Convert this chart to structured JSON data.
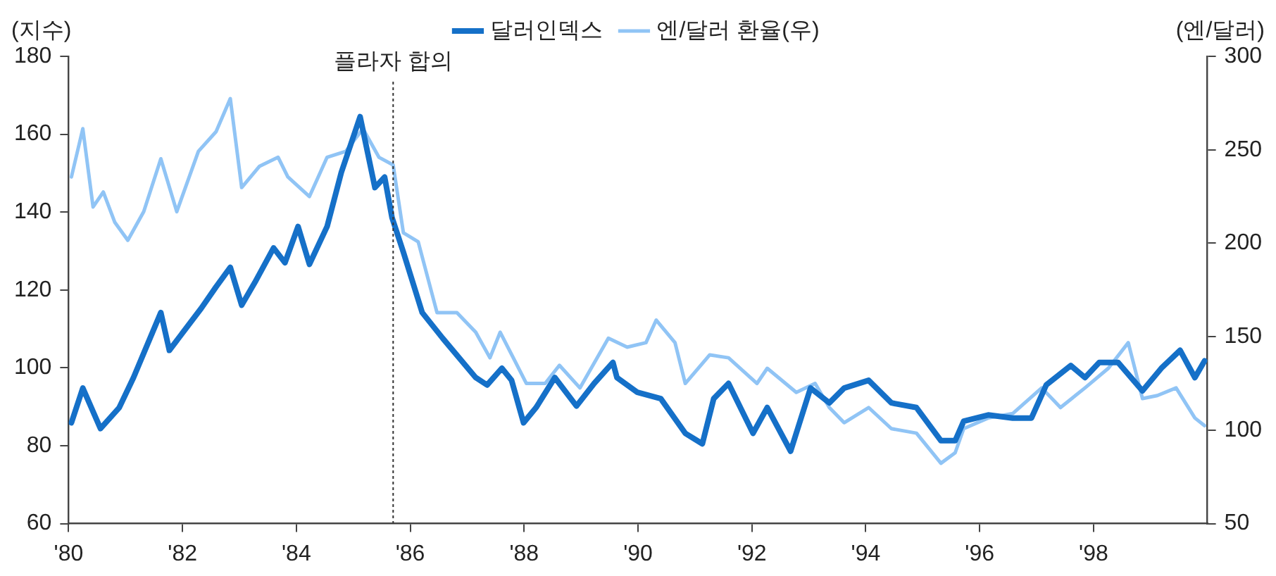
{
  "chart_data": {
    "type": "line",
    "ylabel": "(지수)",
    "y2label": "(엔/달러)",
    "xlim": [
      1980,
      2000
    ],
    "xticks": [
      {
        "value": 1980,
        "label": "'80"
      },
      {
        "value": 1982,
        "label": "'82"
      },
      {
        "value": 1984,
        "label": "'84"
      },
      {
        "value": 1986,
        "label": "'86"
      },
      {
        "value": 1988,
        "label": "'88"
      },
      {
        "value": 1990,
        "label": "'90"
      },
      {
        "value": 1992,
        "label": "'92"
      },
      {
        "value": 1994,
        "label": "'94"
      },
      {
        "value": 1996,
        "label": "'96"
      },
      {
        "value": 1998,
        "label": "'98"
      }
    ],
    "ylim": [
      60,
      180
    ],
    "yticks": [
      60,
      80,
      100,
      120,
      140,
      160,
      180
    ],
    "y2lim": [
      50,
      300
    ],
    "y2ticks": [
      50,
      100,
      150,
      200,
      250,
      300
    ],
    "grid": false,
    "legend": "top right",
    "marker": "none",
    "line_style": "solid",
    "ref_lines": [
      {
        "axis": "x",
        "value": 1985.7,
        "label": "플라자 합의",
        "color": "#333333",
        "line_style": "dotted"
      }
    ],
    "series": [
      {
        "name": "달러인덱스",
        "color": "#1570c8",
        "x": [
          1980.05,
          1980.25,
          1980.56,
          1980.89,
          1981.14,
          1981.62,
          1981.77,
          1982.33,
          1982.59,
          1982.84,
          1983.04,
          1983.27,
          1983.6,
          1983.8,
          1984.03,
          1984.23,
          1984.54,
          1984.79,
          1985.12,
          1985.38,
          1985.55,
          1985.68,
          1985.88,
          1986.21,
          1986.57,
          1987.15,
          1987.35,
          1987.61,
          1987.78,
          1987.99,
          1988.21,
          1988.54,
          1988.92,
          1989.23,
          1989.56,
          1989.63,
          1989.99,
          1990.4,
          1990.83,
          1991.13,
          1991.33,
          1991.59,
          1992.02,
          1992.27,
          1992.68,
          1993.03,
          1993.36,
          1993.62,
          1994.05,
          1994.45,
          1994.89,
          1995.32,
          1995.57,
          1995.72,
          1996.15,
          1996.58,
          1996.91,
          1997.17,
          1997.6,
          1997.85,
          1998.1,
          1998.43,
          1998.86,
          1999.19,
          1999.52,
          1999.78,
          1999.95
        ],
        "values": [
          85.9,
          94.8,
          84.4,
          89.8,
          97.5,
          114.2,
          104.5,
          115.3,
          120.8,
          125.8,
          116.1,
          121.9,
          130.8,
          127,
          136.3,
          126.6,
          136.3,
          150.2,
          164.5,
          146.3,
          149,
          138.6,
          129.7,
          114.2,
          107.6,
          97.5,
          95.6,
          99.9,
          96.8,
          85.9,
          89.8,
          97.5,
          90.2,
          96,
          101.4,
          97.5,
          93.7,
          92.1,
          83.2,
          80.5,
          92.1,
          96,
          83.2,
          89.8,
          78.6,
          94.8,
          91,
          94.8,
          96.8,
          91,
          89.8,
          81.3,
          81.3,
          86.3,
          87.9,
          87.1,
          87.1,
          95.6,
          100.6,
          97.5,
          101.4,
          101.4,
          94.1,
          99.9,
          104.5,
          97.5,
          101.8
        ]
      },
      {
        "name": "엔/달러 환율(우)",
        "color": "#90c4f5",
        "axis": "y2",
        "x": [
          1980.05,
          1980.25,
          1980.43,
          1980.61,
          1980.81,
          1981.04,
          1981.32,
          1981.62,
          1981.9,
          1982.28,
          1982.59,
          1982.84,
          1983.04,
          1983.35,
          1983.68,
          1983.85,
          1984.23,
          1984.54,
          1984.87,
          1985.17,
          1985.45,
          1985.7,
          1985.88,
          1986.14,
          1986.47,
          1986.82,
          1987.15,
          1987.4,
          1987.58,
          1988.04,
          1988.37,
          1988.62,
          1988.98,
          1989.48,
          1989.81,
          1990.14,
          1990.32,
          1990.65,
          1990.83,
          1991.26,
          1991.59,
          1992.09,
          1992.27,
          1992.78,
          1993.11,
          1993.36,
          1993.62,
          1994.05,
          1994.45,
          1994.89,
          1995.32,
          1995.57,
          1995.72,
          1996.15,
          1996.58,
          1997.09,
          1997.42,
          1997.85,
          1998.26,
          1998.61,
          1998.86,
          1999.12,
          1999.45,
          1999.78,
          1999.95
        ],
        "values": [
          235.5,
          261.3,
          219.4,
          227.4,
          211.3,
          201.6,
          216.9,
          245.2,
          216.9,
          249.2,
          259.7,
          277.4,
          229.8,
          241.1,
          246,
          235.5,
          225,
          246,
          249.2,
          261.3,
          246,
          241.9,
          205.6,
          200.8,
          162.9,
          162.9,
          152.4,
          138.7,
          152.4,
          125,
          125,
          134.7,
          122.6,
          149.2,
          144.4,
          146.8,
          158.9,
          146.8,
          125,
          140.3,
          138.7,
          125,
          133.1,
          120.2,
          125,
          112.1,
          104,
          112.1,
          100.8,
          98.4,
          82.3,
          87.9,
          100.8,
          106.5,
          108.9,
          122.6,
          112.1,
          122.6,
          133.1,
          146.8,
          116.9,
          118.5,
          122.6,
          106.5,
          102.4
        ]
      }
    ]
  }
}
